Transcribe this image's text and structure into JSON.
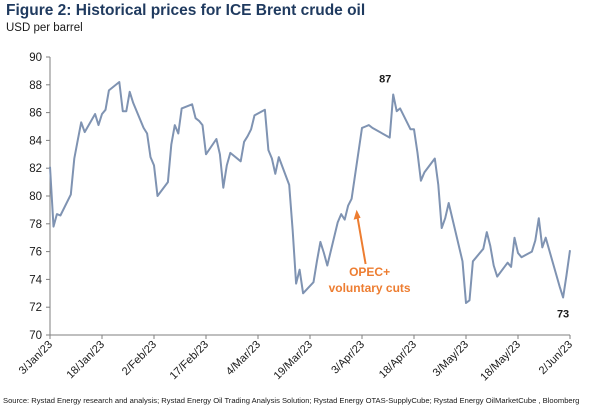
{
  "title": "Figure 2: Historical prices for ICE Brent crude oil",
  "subtitle": "USD per barrel",
  "source": "Source: Rystad Energy research and analysis; Rystad Energy Oil Trading Analysis Solution; Rystad Energy OTAS-SupplyCube; Rystad Energy OilMarketCube , Bloomberg",
  "colors": {
    "line": "#7f93b2",
    "accent": "#ed7d31",
    "axis": "#7f7f7f",
    "title": "#1f3a5f"
  },
  "chart_data": {
    "type": "line",
    "title": "Figure 2: Historical prices for ICE Brent crude oil",
    "ylabel": "USD per barrel",
    "xlabel": "",
    "ylim": [
      70,
      90
    ],
    "yticks": [
      70,
      72,
      74,
      76,
      78,
      80,
      82,
      84,
      86,
      88,
      90
    ],
    "x_range": [
      "2023-01-03",
      "2023-06-02"
    ],
    "xticks": [
      {
        "date": "2023-01-03",
        "label": "3/Jan/23"
      },
      {
        "date": "2023-01-18",
        "label": "18/Jan/23"
      },
      {
        "date": "2023-02-02",
        "label": "2/Feb/23"
      },
      {
        "date": "2023-02-17",
        "label": "17/Feb/23"
      },
      {
        "date": "2023-03-04",
        "label": "4/Mar/23"
      },
      {
        "date": "2023-03-19",
        "label": "19/Mar/23"
      },
      {
        "date": "2023-04-03",
        "label": "3/Apr/23"
      },
      {
        "date": "2023-04-18",
        "label": "18/Apr/23"
      },
      {
        "date": "2023-05-03",
        "label": "3/May/23"
      },
      {
        "date": "2023-05-18",
        "label": "18/May/23"
      },
      {
        "date": "2023-06-02",
        "label": "2/Jun/23"
      }
    ],
    "grid": false,
    "legend": "none",
    "series": [
      {
        "x": [
          "2023-01-03",
          "2023-01-04",
          "2023-01-05",
          "2023-01-06",
          "2023-01-09",
          "2023-01-10",
          "2023-01-11",
          "2023-01-12",
          "2023-01-13",
          "2023-01-16",
          "2023-01-17",
          "2023-01-18",
          "2023-01-19",
          "2023-01-20",
          "2023-01-23",
          "2023-01-24",
          "2023-01-25",
          "2023-01-26",
          "2023-01-27",
          "2023-01-30",
          "2023-01-31",
          "2023-02-01",
          "2023-02-02",
          "2023-02-03",
          "2023-02-06",
          "2023-02-07",
          "2023-02-08",
          "2023-02-09",
          "2023-02-10",
          "2023-02-13",
          "2023-02-14",
          "2023-02-15",
          "2023-02-16",
          "2023-02-17",
          "2023-02-20",
          "2023-02-21",
          "2023-02-22",
          "2023-02-23",
          "2023-02-24",
          "2023-02-27",
          "2023-02-28",
          "2023-03-01",
          "2023-03-02",
          "2023-03-03",
          "2023-03-06",
          "2023-03-07",
          "2023-03-08",
          "2023-03-09",
          "2023-03-10",
          "2023-03-13",
          "2023-03-14",
          "2023-03-15",
          "2023-03-16",
          "2023-03-17",
          "2023-03-20",
          "2023-03-21",
          "2023-03-22",
          "2023-03-23",
          "2023-03-24",
          "2023-03-27",
          "2023-03-28",
          "2023-03-29",
          "2023-03-30",
          "2023-03-31",
          "2023-04-03",
          "2023-04-04",
          "2023-04-05",
          "2023-04-06",
          "2023-04-11",
          "2023-04-12",
          "2023-04-13",
          "2023-04-14",
          "2023-04-17",
          "2023-04-18",
          "2023-04-19",
          "2023-04-20",
          "2023-04-21",
          "2023-04-24",
          "2023-04-25",
          "2023-04-26",
          "2023-04-27",
          "2023-04-28",
          "2023-05-02",
          "2023-05-03",
          "2023-05-04",
          "2023-05-05",
          "2023-05-08",
          "2023-05-09",
          "2023-05-10",
          "2023-05-11",
          "2023-05-12",
          "2023-05-15",
          "2023-05-16",
          "2023-05-17",
          "2023-05-18",
          "2023-05-19",
          "2023-05-22",
          "2023-05-23",
          "2023-05-24",
          "2023-05-25",
          "2023-05-26",
          "2023-05-30",
          "2023-05-31",
          "2023-06-01",
          "2023-06-02"
        ],
        "y": [
          82.1,
          77.8,
          78.7,
          78.6,
          80.1,
          82.7,
          84.0,
          85.3,
          84.6,
          85.9,
          85.1,
          85.9,
          86.2,
          87.6,
          88.2,
          86.1,
          86.1,
          87.5,
          86.7,
          84.9,
          84.5,
          82.8,
          82.2,
          80.0,
          81.0,
          83.7,
          85.1,
          84.5,
          86.3,
          86.6,
          85.6,
          85.4,
          85.1,
          83.0,
          84.1,
          83.0,
          80.6,
          82.2,
          83.1,
          82.5,
          83.9,
          84.3,
          84.8,
          85.8,
          86.2,
          83.3,
          82.7,
          81.6,
          82.8,
          80.8,
          77.5,
          73.7,
          74.7,
          73.0,
          73.8,
          75.3,
          76.7,
          75.9,
          75.0,
          78.1,
          78.7,
          78.3,
          79.3,
          79.8,
          84.9,
          85.0,
          85.1,
          84.9,
          84.2,
          87.3,
          86.1,
          86.3,
          84.8,
          84.8,
          83.1,
          81.1,
          81.7,
          82.7,
          80.8,
          77.7,
          78.4,
          79.5,
          75.3,
          72.3,
          72.5,
          75.3,
          76.2,
          77.4,
          76.4,
          75.0,
          74.2,
          75.2,
          74.9,
          77.0,
          75.9,
          75.6,
          76.0,
          76.8,
          78.4,
          76.3,
          77.0,
          73.5,
          72.7,
          74.3,
          76.1
        ]
      }
    ],
    "annotations": [
      {
        "text": "87",
        "date": "2023-04-12",
        "value": 87.3
      },
      {
        "text": "73",
        "date": "2023-05-31",
        "value": 72.7
      },
      {
        "text": "OPEC+ voluntary cuts",
        "lines": [
          "OPEC+",
          "voluntary cuts"
        ],
        "arrow_to_date": "2023-03-31",
        "arrow_to_value": 79.3
      }
    ]
  }
}
